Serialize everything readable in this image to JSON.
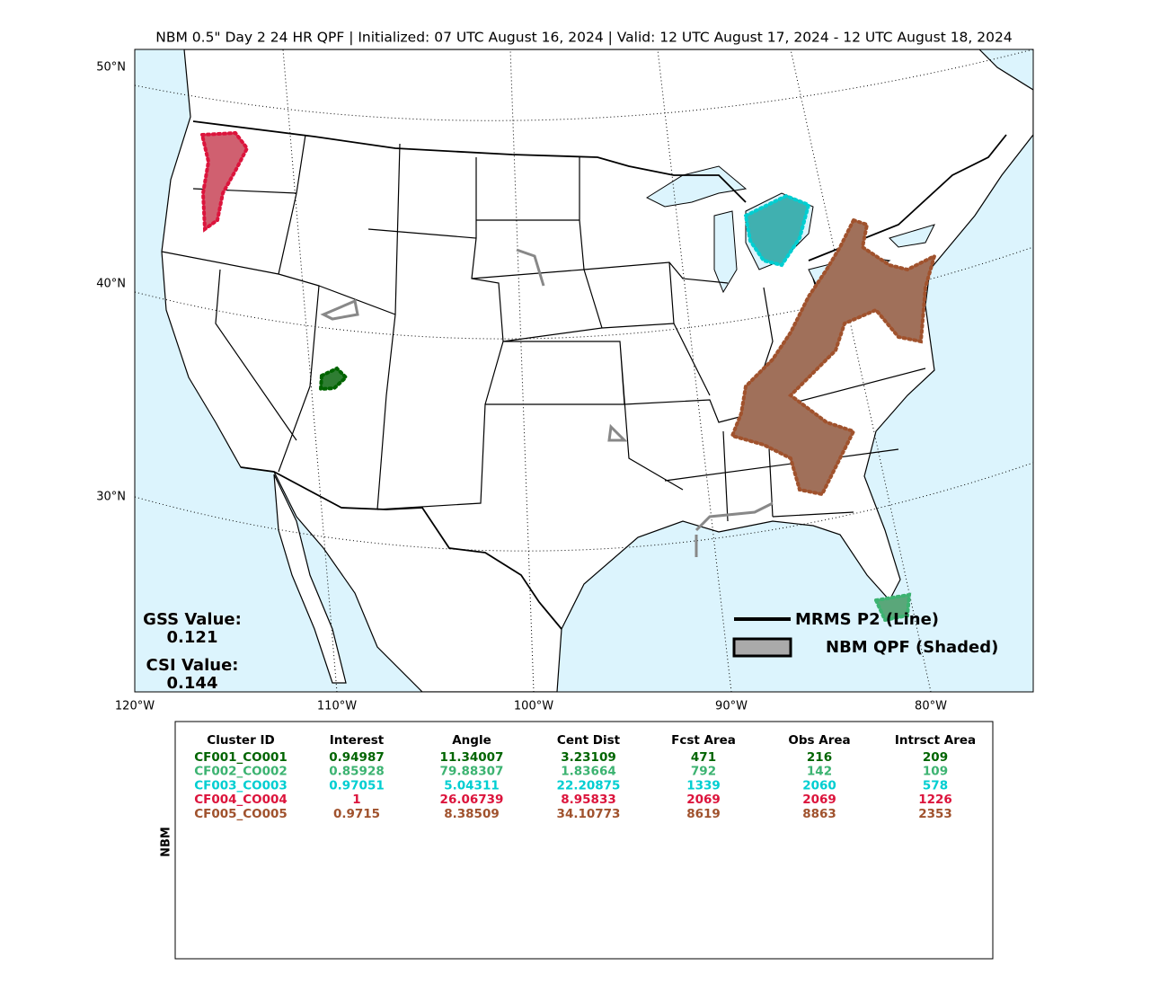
{
  "title": "NBM 0.5\" Day 2 24 HR QPF | Initialized: 07 UTC August 16, 2024 | Valid: 12 UTC August 17, 2024 - 12 UTC August 18, 2024",
  "map": {
    "lat_labels": [
      "50°N",
      "40°N",
      "30°N"
    ],
    "lon_labels": [
      "120°W",
      "110°W",
      "100°W",
      "90°W",
      "80°W"
    ],
    "scores": {
      "gss_label": "GSS Value:",
      "gss_value": 0.121,
      "csi_label": "CSI Value:",
      "csi_value": 0.144
    },
    "legend": [
      "MRMS P2 (Line)",
      "NBM QPF (Shaded)"
    ]
  },
  "table": {
    "side_label": "NBM",
    "headers": [
      "Cluster ID",
      "Interest",
      "Angle",
      "Cent Dist",
      "Fcst Area",
      "Obs Area",
      "Intrsct Area"
    ],
    "row_colors": [
      "#006400",
      "#3cb371",
      "#00ced1",
      "#dc143c",
      "#a0522d"
    ],
    "rows": [
      [
        "CF001_CO001",
        0.94987,
        11.34007,
        3.23109,
        471,
        216,
        209
      ],
      [
        "CF002_CO002",
        0.85928,
        79.88307,
        1.83664,
        792,
        142,
        109
      ],
      [
        "CF003_CO003",
        0.97051,
        5.04311,
        22.20875,
        1339,
        2060,
        578
      ],
      [
        "CF004_CO004",
        1,
        26.06739,
        8.95833,
        2069,
        2069,
        1226
      ],
      [
        "CF005_CO005",
        0.9715,
        8.38509,
        34.10773,
        8619,
        8863,
        2353
      ]
    ]
  }
}
